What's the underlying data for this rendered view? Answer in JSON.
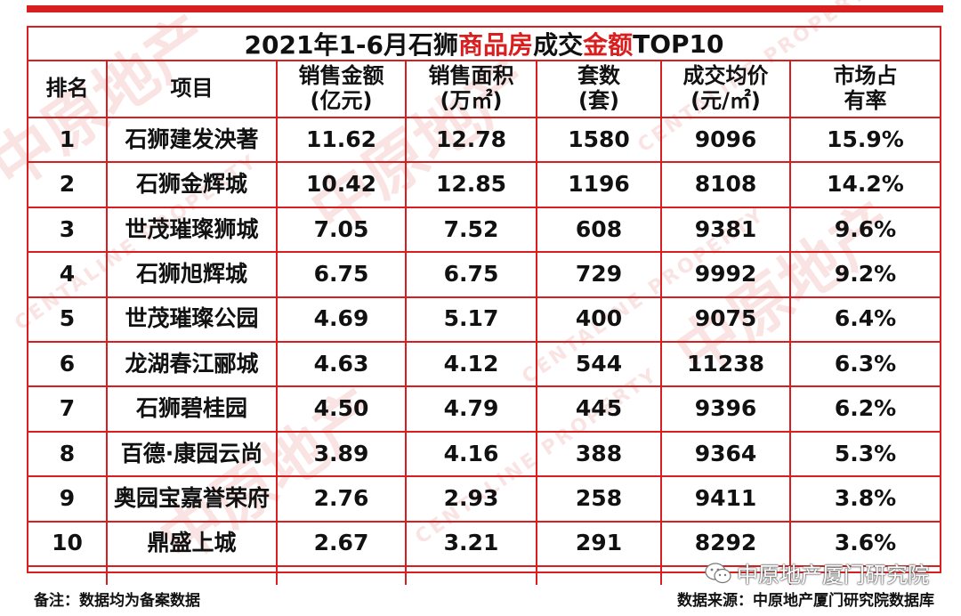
{
  "title": {
    "prefix": "2021年1-6月石狮",
    "highlight1": "商品房",
    "middle": "成交",
    "highlight2": "金额",
    "suffix": "TOP10"
  },
  "headers": [
    [
      "排名"
    ],
    [
      "项目"
    ],
    [
      "销售金额",
      "(亿元)"
    ],
    [
      "销售面积",
      "(万㎡)"
    ],
    [
      "套数",
      "(套)"
    ],
    [
      "成交均价",
      "(元/㎡)"
    ],
    [
      "市场占",
      "有率"
    ]
  ],
  "rows": [
    [
      "1",
      "石狮建发泱著",
      "11.62",
      "12.78",
      "1580",
      "9096",
      "15.9%"
    ],
    [
      "2",
      "石狮金辉城",
      "10.42",
      "12.85",
      "1196",
      "8108",
      "14.2%"
    ],
    [
      "3",
      "世茂璀璨狮城",
      "7.05",
      "7.52",
      "608",
      "9381",
      "9.6%"
    ],
    [
      "4",
      "石狮旭辉城",
      "6.75",
      "6.75",
      "729",
      "9992",
      "9.2%"
    ],
    [
      "5",
      "世茂璀璨公园",
      "4.69",
      "5.17",
      "400",
      "9075",
      "6.4%"
    ],
    [
      "6",
      "龙湖春江郦城",
      "4.63",
      "4.12",
      "544",
      "11238",
      "6.3%"
    ],
    [
      "7",
      "石狮碧桂园",
      "4.50",
      "4.79",
      "445",
      "9396",
      "6.2%"
    ],
    [
      "8",
      "百德·康园云尚",
      "3.89",
      "4.16",
      "388",
      "9364",
      "5.3%"
    ],
    [
      "9",
      "奥园宝嘉誉荣府",
      "2.76",
      "2.93",
      "258",
      "9411",
      "3.8%"
    ],
    [
      "10",
      "鼎盛上城",
      "2.67",
      "3.21",
      "291",
      "8292",
      "3.6%"
    ]
  ],
  "footer": {
    "note": "备注：数据均为备案数据",
    "source": "数据来源：中原地产厦门研究院数据库"
  },
  "wechat_label": "中原地产厦门研究院",
  "watermark": {
    "text_cn": "中原地产",
    "text_en": "CENTALINE PROPERTY"
  },
  "colors": {
    "accent": "#d81e1e"
  }
}
